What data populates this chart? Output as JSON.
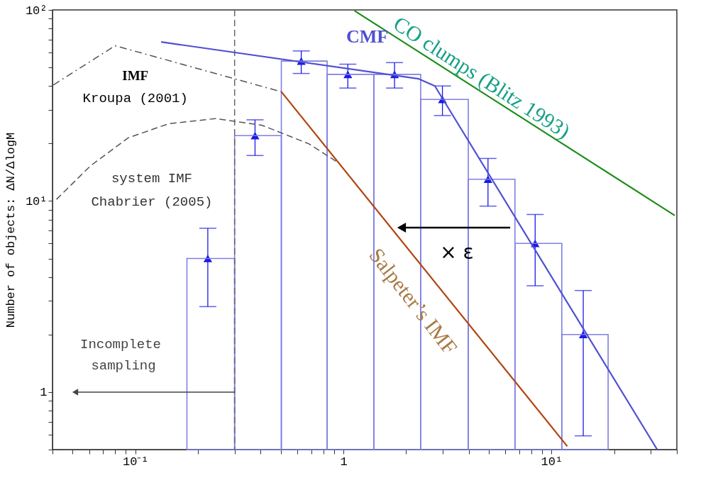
{
  "chart_data": {
    "type": "scatter",
    "ylabel": "Number of objects: ΔN/ΔlogM",
    "xlim": [
      0.04,
      40
    ],
    "ylim": [
      0.5,
      100
    ],
    "log": "xy",
    "grid": false,
    "xticks": [
      {
        "value": 0.04,
        "label": null
      },
      {
        "value": 0.05,
        "label": null
      },
      {
        "value": 0.06,
        "label": null
      },
      {
        "value": 0.07,
        "label": null
      },
      {
        "value": 0.08,
        "label": null
      },
      {
        "value": 0.09,
        "label": null
      },
      {
        "value": 0.1,
        "label": "10⁻¹"
      },
      {
        "value": 0.2,
        "label": null
      },
      {
        "value": 0.3,
        "label": null
      },
      {
        "value": 0.4,
        "label": null
      },
      {
        "value": 0.5,
        "label": null
      },
      {
        "value": 0.6,
        "label": null
      },
      {
        "value": 0.7,
        "label": null
      },
      {
        "value": 0.8,
        "label": null
      },
      {
        "value": 0.9,
        "label": null
      },
      1,
      {
        "value": 2,
        "label": null
      },
      {
        "value": 3,
        "label": null
      },
      {
        "value": 4,
        "label": null
      },
      {
        "value": 5,
        "label": null
      },
      {
        "value": 6,
        "label": null
      },
      {
        "value": 7,
        "label": null
      },
      {
        "value": 8,
        "label": null
      },
      {
        "value": 9,
        "label": null
      },
      {
        "value": 10,
        "label": "10¹"
      },
      {
        "value": 20,
        "label": null
      },
      {
        "value": 30,
        "label": null
      },
      {
        "value": 40,
        "label": null
      }
    ],
    "yticks": [
      {
        "value": 0.5,
        "label": null
      },
      {
        "value": 0.6,
        "label": null
      },
      {
        "value": 0.7,
        "label": null
      },
      {
        "value": 0.8,
        "label": null
      },
      {
        "value": 0.9,
        "label": null
      },
      1,
      {
        "value": 2,
        "label": null
      },
      {
        "value": 3,
        "label": null
      },
      {
        "value": 4,
        "label": null
      },
      {
        "value": 5,
        "label": null
      },
      {
        "value": 6,
        "label": null
      },
      {
        "value": 7,
        "label": null
      },
      {
        "value": 8,
        "label": null
      },
      {
        "value": 9,
        "label": null
      },
      {
        "value": 10,
        "label": "10¹"
      },
      {
        "value": 20,
        "label": null
      },
      {
        "value": 30,
        "label": null
      },
      {
        "value": 40,
        "label": null
      },
      {
        "value": 50,
        "label": null
      },
      {
        "value": 60,
        "label": null
      },
      {
        "value": 70,
        "label": null
      },
      {
        "value": 80,
        "label": null
      },
      {
        "value": 90,
        "label": null
      },
      {
        "value": 100,
        "label": "10²"
      }
    ],
    "series": [
      {
        "type": "scatter",
        "marker": "triangle",
        "color": "#1a1ae6",
        "x": [
          0.223,
          0.376,
          0.627,
          1.05,
          1.76,
          2.99,
          4.95,
          8.34,
          14.2
        ],
        "values": [
          5.0,
          22,
          54,
          46,
          46,
          34,
          13,
          6.0,
          2.0
        ],
        "errors": [
          [
            2.8,
            7.2
          ],
          [
            17.3,
            26.6
          ],
          [
            46.5,
            61
          ],
          [
            39,
            52
          ],
          [
            39,
            53
          ],
          [
            28,
            40
          ],
          [
            9.4,
            16.7
          ],
          [
            3.6,
            8.5
          ],
          [
            0.59,
            3.4
          ]
        ]
      },
      {
        "type": "histogram",
        "color": "#7f7fe6",
        "bins": [
          0.177,
          0.3,
          0.503,
          0.835,
          1.4,
          2.35,
          3.98,
          6.67,
          11.2,
          18.7
        ],
        "values": [
          5.0,
          22,
          54,
          46,
          46,
          34,
          13,
          6.0,
          2.0
        ]
      },
      {
        "type": "line",
        "name": "CMF",
        "color": "#5050d2",
        "line_style": "solid",
        "x": [
          0.133,
          2.3,
          2.75,
          32.2
        ],
        "values": [
          68,
          43.6,
          40,
          0.5
        ]
      },
      {
        "type": "line",
        "name": "IMF\nKroupa (2001)",
        "color": "#555555",
        "line_style": "dashdot",
        "x": [
          0.0404,
          0.08,
          0.503
        ],
        "values": [
          40.5,
          65,
          37.3
        ]
      },
      {
        "type": "line",
        "name": "system IMF\nChabrier (2005)",
        "color": "#555555",
        "line_style": "dashed",
        "x": [
          0.0418,
          0.061,
          0.0924,
          0.145,
          0.243,
          0.407,
          0.683,
          0.95
        ],
        "values": [
          10.2,
          15.3,
          21.4,
          25.4,
          27,
          24.9,
          19.9,
          15.8
        ]
      },
      {
        "type": "line",
        "name": "Salpeter’s IMF",
        "color": "#b0450f",
        "line_style": "solid",
        "x": [
          0.503,
          11.9
        ],
        "values": [
          37.3,
          0.52
        ]
      },
      {
        "type": "line",
        "name": "CO clumps (Blitz 1993)",
        "color": "#1a8c1a",
        "line_style": "solid",
        "x": [
          1.13,
          39.1
        ],
        "values": [
          99,
          8.4
        ]
      }
    ],
    "ref_lines": [
      {
        "axis": "x",
        "value": 0.3,
        "color": "#666666",
        "line_style": "dashed"
      }
    ],
    "annotations": [
      "Incomplete sampling",
      "× ε"
    ]
  }
}
